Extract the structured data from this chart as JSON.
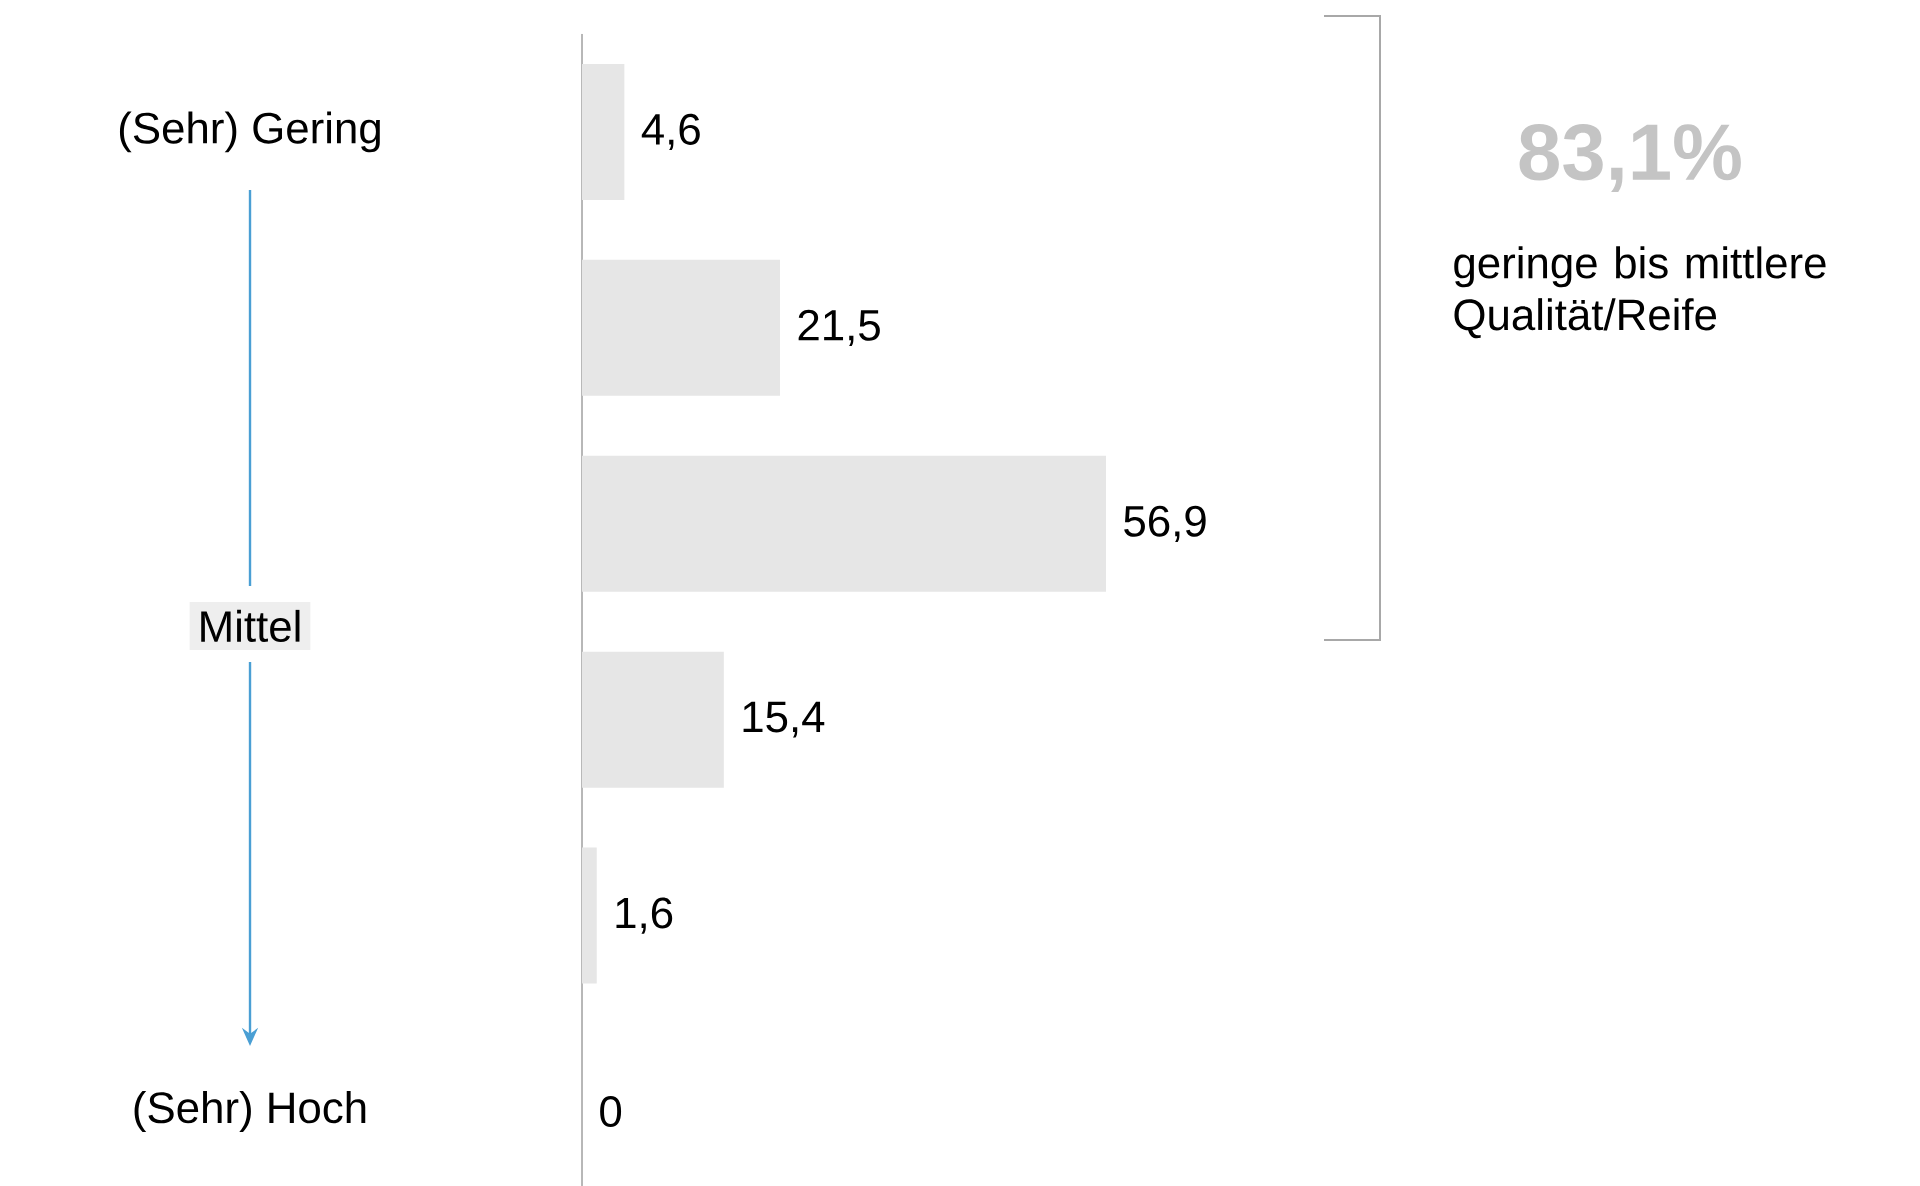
{
  "chart_data": {
    "type": "bar",
    "orientation": "horizontal",
    "categories": [
      "(Sehr) Gering",
      null,
      null,
      null,
      null,
      "(Sehr) Hoch"
    ],
    "values": [
      4.6,
      21.5,
      56.9,
      15.4,
      1.6,
      0
    ],
    "color": "#e6e6e6",
    "value_labels": [
      "4,6",
      "21,5",
      "56,9",
      "15,4",
      "1,6",
      "0"
    ],
    "annotations": [
      "Mittel",
      "83,1%",
      "geringe bis mittlere Qualität/Reife"
    ]
  }
}
